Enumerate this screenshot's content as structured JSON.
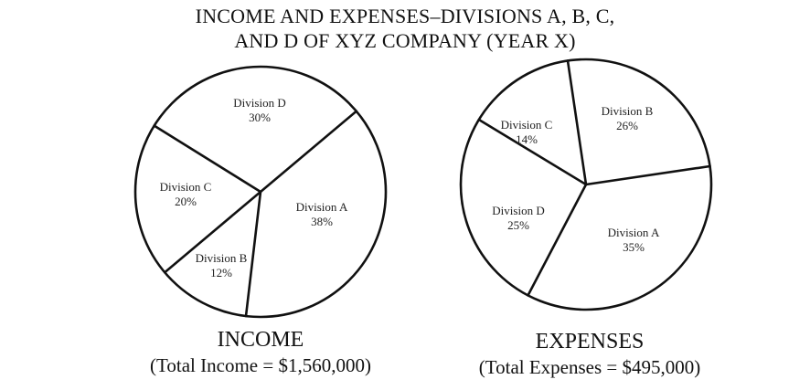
{
  "title_line1": "INCOME AND EXPENSES–DIVISIONS A, B, C,",
  "title_line2": "AND D OF XYZ COMPANY (YEAR X)",
  "income_caption": "INCOME",
  "income_total": "(Total Income = $1,560,000)",
  "expenses_caption": "EXPENSES",
  "expenses_total": "(Total Expenses = $495,000)",
  "chart_data": [
    {
      "type": "pie",
      "title": "INCOME",
      "subtitle": "(Total Income = $1,560,000)",
      "slices": [
        {
          "label": "Division A",
          "value": 38,
          "text": "38%"
        },
        {
          "label": "Division B",
          "value": 12,
          "text": "12%"
        },
        {
          "label": "Division C",
          "value": 20,
          "text": "20%"
        },
        {
          "label": "Division D",
          "value": 30,
          "text": "30%"
        }
      ]
    },
    {
      "type": "pie",
      "title": "EXPENSES",
      "subtitle": "(Total Expenses = $495,000)",
      "slices": [
        {
          "label": "Division A",
          "value": 35,
          "text": "35%"
        },
        {
          "label": "Division B",
          "value": 26,
          "text": "26%"
        },
        {
          "label": "Division C",
          "value": 14,
          "text": "14%"
        },
        {
          "label": "Division D",
          "value": 25,
          "text": "25%"
        }
      ]
    }
  ]
}
